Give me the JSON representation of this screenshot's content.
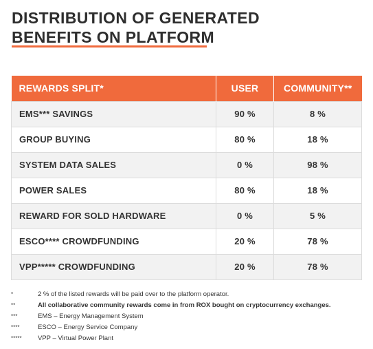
{
  "title": {
    "line1": "DISTRIBUTION OF GENERATED",
    "line2": "BENEFITS ON PLATFORM"
  },
  "table": {
    "headers": [
      "REWARDS SPLIT*",
      "USER",
      "COMMUNITY**"
    ],
    "rows": [
      {
        "label": "EMS*** SAVINGS",
        "user": "90 %",
        "community": "8 %"
      },
      {
        "label": "GROUP BUYING",
        "user": "80 %",
        "community": "18 %"
      },
      {
        "label": "SYSTEM DATA SALES",
        "user": "0 %",
        "community": "98 %"
      },
      {
        "label": "POWER SALES",
        "user": "80 %",
        "community": "18 %"
      },
      {
        "label": "REWARD FOR SOLD HARDWARE",
        "user": "0 %",
        "community": "5 %"
      },
      {
        "label": "ESCO**** CROWDFUNDING",
        "user": "20 %",
        "community": "78 %"
      },
      {
        "label": "VPP***** CROWDFUNDING",
        "user": "20 %",
        "community": "78 %"
      }
    ]
  },
  "footnotes": [
    {
      "mark": "*",
      "text": "2 % of the listed rewards will be paid over to the platform operator."
    },
    {
      "mark": "**",
      "text": "All collaborative community rewards come in from ROX bought on cryptocurrency exchanges."
    },
    {
      "mark": "***",
      "text": "EMS – Energy Management System"
    },
    {
      "mark": "****",
      "text": "ESCO – Energy Service Company"
    },
    {
      "mark": "*****",
      "text": "VPP – Virtual Power Plant"
    }
  ],
  "colors": {
    "accent": "#f06a3c",
    "row_alt": "#f2f2f2"
  }
}
